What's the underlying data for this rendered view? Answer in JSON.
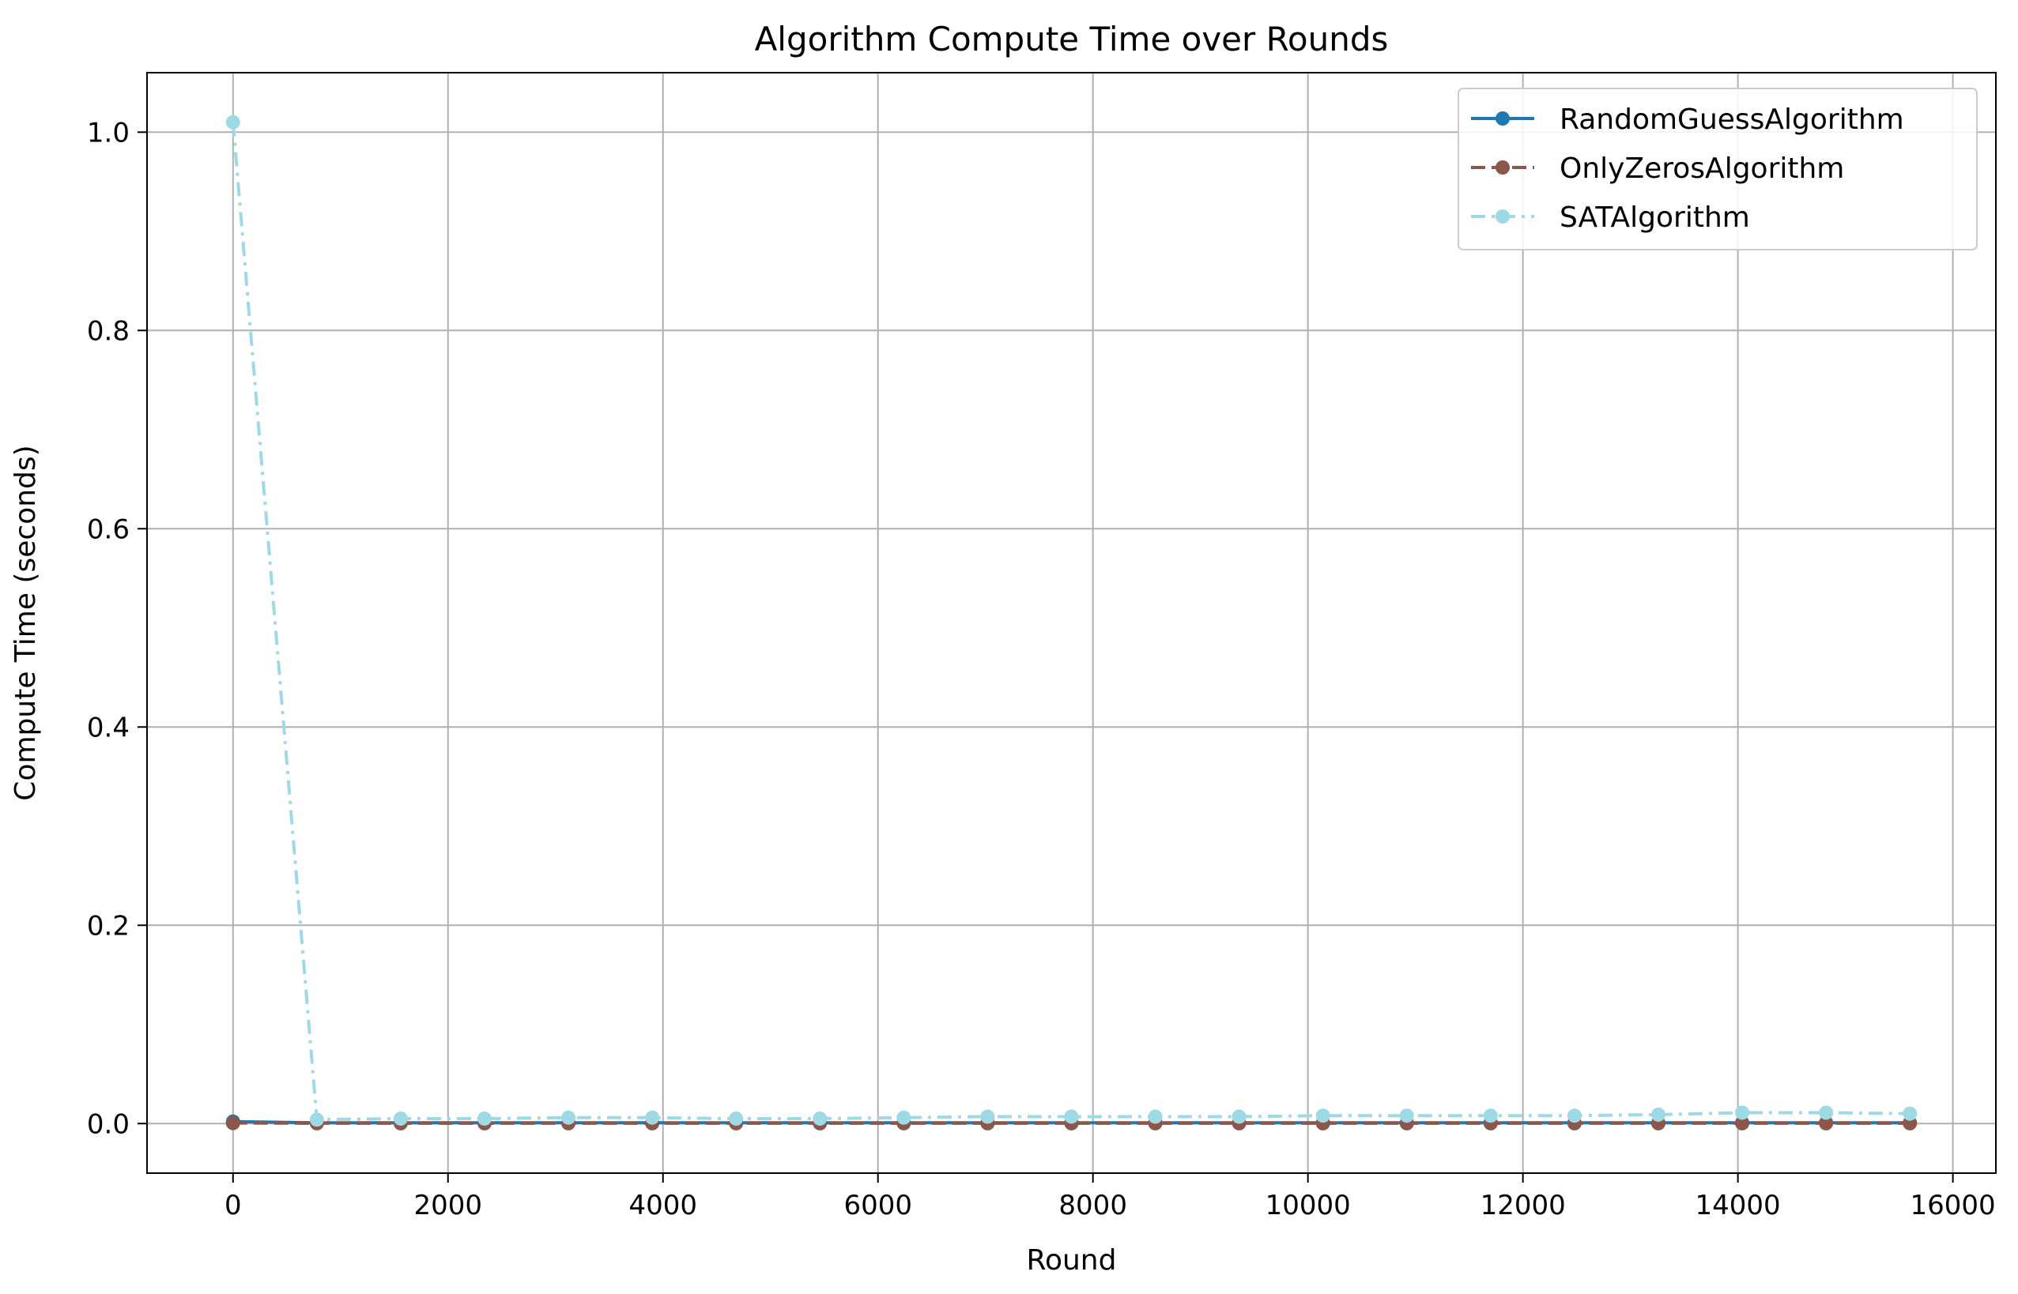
{
  "chart_data": {
    "type": "line",
    "title": "Algorithm Compute Time over Rounds",
    "xlabel": "Round",
    "ylabel": "Compute Time (seconds)",
    "xlim": [
      -800,
      16400
    ],
    "ylim": [
      -0.05,
      1.06
    ],
    "xticks": [
      0,
      2000,
      4000,
      6000,
      8000,
      10000,
      12000,
      14000,
      16000
    ],
    "yticks": [
      0.0,
      0.2,
      0.4,
      0.6,
      0.8,
      1.0
    ],
    "grid": true,
    "legend_position": "top-right",
    "series": [
      {
        "name": "RandomGuessAlgorithm",
        "color": "#1f77b4",
        "dash": "solid",
        "x": [
          0,
          780,
          1560,
          2340,
          3120,
          3900,
          4680,
          5460,
          6240,
          7020,
          7800,
          8580,
          9360,
          10140,
          10920,
          11700,
          12480,
          13260,
          14040,
          14820,
          15600
        ],
        "y": [
          0.002,
          0.0008,
          0.0008,
          0.0008,
          0.0008,
          0.0008,
          0.0008,
          0.0008,
          0.0008,
          0.0008,
          0.0008,
          0.0008,
          0.0008,
          0.0008,
          0.0008,
          0.0008,
          0.0008,
          0.0008,
          0.0008,
          0.0008,
          0.0008
        ]
      },
      {
        "name": "OnlyZerosAlgorithm",
        "color": "#8c564b",
        "dash": "dashed",
        "x": [
          0,
          780,
          1560,
          2340,
          3120,
          3900,
          4680,
          5460,
          6240,
          7020,
          7800,
          8580,
          9360,
          10140,
          10920,
          11700,
          12480,
          13260,
          14040,
          14820,
          15600
        ],
        "y": [
          0.0005,
          0.0003,
          0.0003,
          0.0003,
          0.0003,
          0.0003,
          0.0003,
          0.0003,
          0.0003,
          0.0003,
          0.0003,
          0.0003,
          0.0003,
          0.0003,
          0.0003,
          0.0003,
          0.0003,
          0.0003,
          0.0003,
          0.0003,
          0.0003
        ]
      },
      {
        "name": "SATAlgorithm",
        "color": "#9edae5",
        "dash": "dashdot",
        "x": [
          0,
          780,
          1560,
          2340,
          3120,
          3900,
          4680,
          5460,
          6240,
          7020,
          7800,
          8580,
          9360,
          10140,
          10920,
          11700,
          12480,
          13260,
          14040,
          14820,
          15600
        ],
        "y": [
          1.01,
          0.004,
          0.005,
          0.005,
          0.006,
          0.006,
          0.005,
          0.005,
          0.006,
          0.007,
          0.007,
          0.007,
          0.007,
          0.008,
          0.008,
          0.008,
          0.008,
          0.009,
          0.011,
          0.011,
          0.01
        ]
      }
    ]
  }
}
